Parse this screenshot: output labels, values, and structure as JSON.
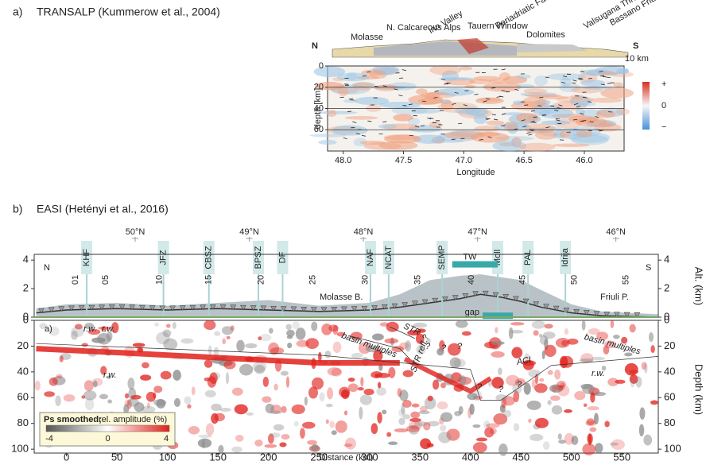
{
  "chart_data": [
    {
      "type": "section",
      "label": "a)",
      "title": "TRANSALP (Kummerow et al., 2004)",
      "xlabel": "Longitude",
      "ylabel": "depth [km]",
      "xlim": [
        48.13,
        45.67
      ],
      "ylim": [
        0,
        80
      ],
      "xticks": [
        {
          "value": 48,
          "label": "48.0"
        },
        {
          "value": 47.5,
          "label": "47.5"
        },
        {
          "value": 47,
          "label": "47.0"
        },
        {
          "value": 46.5,
          "label": "46.5"
        },
        {
          "value": 46,
          "label": "46.0"
        }
      ],
      "yticks": [
        0,
        20,
        40,
        60
      ],
      "grid": true,
      "colorbar_labels": [
        "+",
        "0",
        "−"
      ],
      "profile_labels": [
        "N",
        "S"
      ],
      "depth_scale": "10 km",
      "geology_labels": [
        "Molasse",
        "N. Calcareous Alps",
        "Inn Valley",
        "Tauern Window",
        "Periadriatic Fault",
        "Dolomites",
        "Valsugana Thrust",
        "Bassano Friuli Thrust"
      ]
    },
    {
      "type": "line",
      "label": "b)",
      "title": "EASI (Hetényi et al., 2016)",
      "xlabel": "Distance (km)",
      "ylabel": "Alt. (km)",
      "depth_label": "Depth (km)",
      "xlim": [
        -32,
        586
      ],
      "xticks": [
        0,
        50,
        100,
        150,
        200,
        250,
        300,
        350,
        400,
        450,
        500,
        550
      ],
      "ylim": [
        0,
        4.4
      ],
      "yticks": [
        0,
        2,
        4
      ],
      "depth_ylim": [
        0,
        103
      ],
      "depth_yticks": [
        0,
        20,
        40,
        60,
        80,
        100
      ],
      "x": [
        -30,
        0,
        50,
        100,
        150,
        200,
        250,
        300,
        330,
        360,
        390,
        410,
        430,
        450,
        470,
        500,
        530,
        586
      ],
      "series": [
        {
          "color": "#b9c3c7",
          "values": [
            0.6,
            0.9,
            1.0,
            0.8,
            1.0,
            1.2,
            0.8,
            1.0,
            1.6,
            2.6,
            2.9,
            3.0,
            2.8,
            2.6,
            1.9,
            0.9,
            0.4,
            0.2
          ]
        },
        {
          "color": "#333333",
          "values": [
            0.3,
            0.5,
            0.6,
            0.5,
            0.6,
            0.5,
            0.4,
            0.5,
            0.7,
            1.0,
            1.3,
            1.6,
            1.4,
            1.1,
            0.7,
            0.3,
            0.1,
            0.0
          ]
        }
      ],
      "lat_ticks": [
        {
          "value": 68,
          "label": "50°N"
        },
        {
          "value": 181,
          "label": "49°N"
        },
        {
          "value": 294,
          "label": "48°N"
        },
        {
          "value": 407,
          "label": "47°N"
        },
        {
          "value": 544,
          "label": "46°N"
        }
      ],
      "station_ticks": [
        {
          "value": 9,
          "label": "01"
        },
        {
          "value": 39,
          "label": "05"
        },
        {
          "value": 92,
          "label": "10"
        },
        {
          "value": 141,
          "label": "15"
        },
        {
          "value": 193,
          "label": "20"
        },
        {
          "value": 244,
          "label": "25"
        },
        {
          "value": 296,
          "label": "30"
        },
        {
          "value": 348,
          "label": "35"
        },
        {
          "value": 401,
          "label": "40"
        },
        {
          "value": 452,
          "label": "45"
        },
        {
          "value": 503,
          "label": "50"
        },
        {
          "value": 554,
          "label": "55"
        }
      ],
      "faults": [
        {
          "value": 20,
          "label": "KHF"
        },
        {
          "value": 96,
          "label": "JFZ"
        },
        {
          "value": 141,
          "label": "CBSZ"
        },
        {
          "value": 190,
          "label": "BPSZ"
        },
        {
          "value": 214,
          "label": "DF"
        },
        {
          "value": 301,
          "label": "NAF"
        },
        {
          "value": 319,
          "label": "NCAT"
        },
        {
          "value": 372,
          "label": "SEMP"
        },
        {
          "value": 427,
          "label": "Moll"
        },
        {
          "value": 457,
          "label": "PAL"
        },
        {
          "value": 494,
          "label": "Idrija"
        }
      ],
      "bars": [
        {
          "label": "TW",
          "range": [
            382,
            427
          ],
          "alt": 3.7
        },
        {
          "label": "gap",
          "range": [
            412,
            442
          ],
          "alt": 0.1
        }
      ],
      "profile_labels": [
        "N",
        "S"
      ],
      "region_labels": [
        "Molasse B.",
        "Friuli P."
      ],
      "section_labels": [
        "a)",
        "r.w.",
        "r.w.",
        "r.w.",
        "r.w.",
        "basin multiples",
        "STR",
        "STR refl.?",
        "basin multiples",
        "ACI",
        "?",
        "?",
        "?",
        "?",
        "?",
        "?"
      ],
      "legend_title": "Ps smoothed;",
      "legend_subtitle": "rel. amplitude (%)",
      "legend_ticks": [
        -4,
        0,
        4
      ]
    }
  ]
}
